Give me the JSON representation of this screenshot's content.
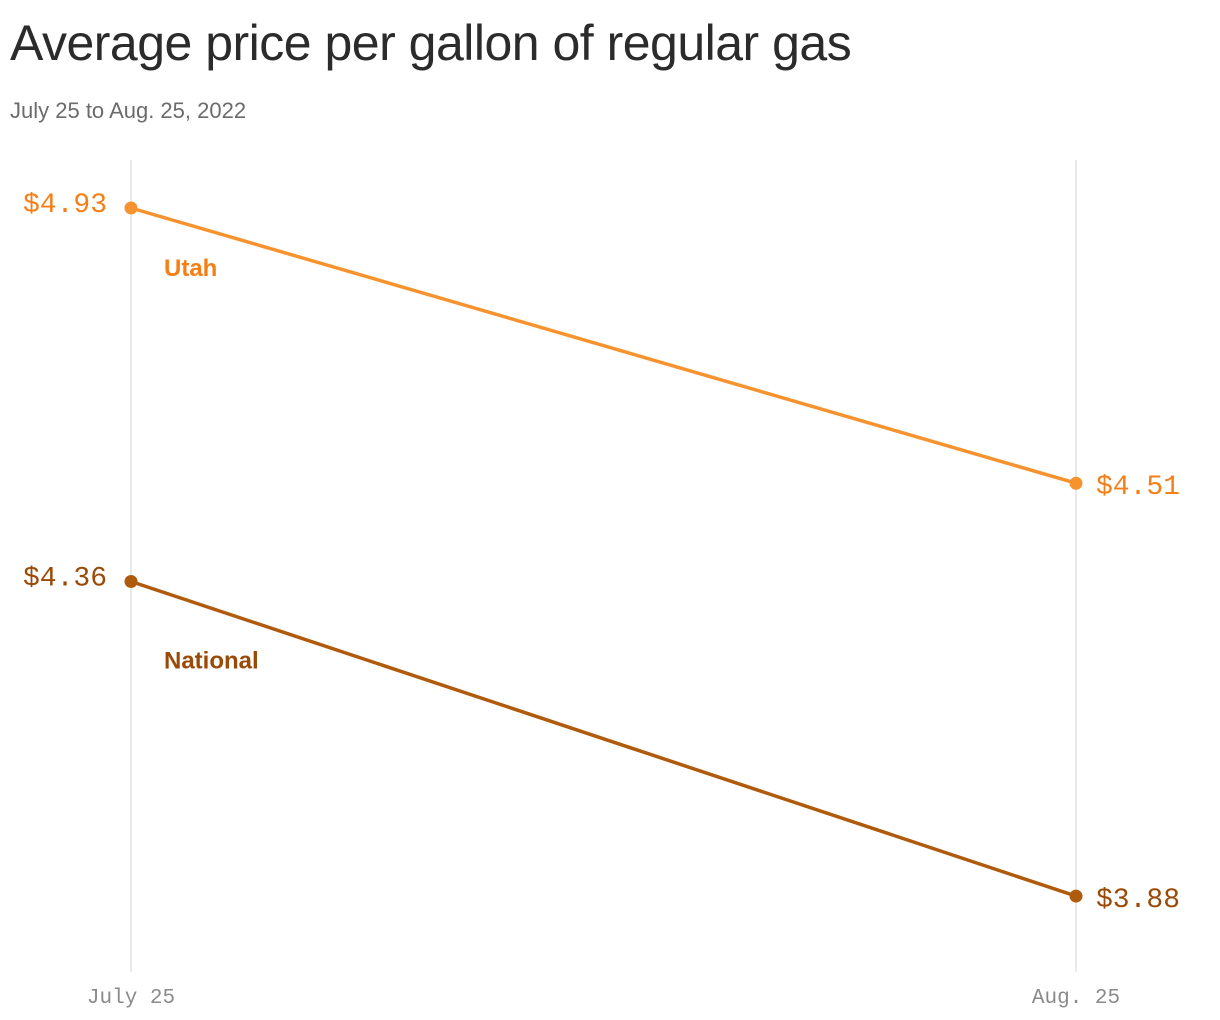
{
  "header": {
    "title": "Average price per gallon of regular gas",
    "subtitle": "July 25 to Aug. 25, 2022"
  },
  "colors": {
    "utah": "#f7932e",
    "utah_text": "#f57f17",
    "national": "#b05a0c",
    "national_text": "#9a4a06",
    "gridline": "#e3e3e3",
    "tick_text": "#8a8a8a"
  },
  "chart_data": {
    "type": "line",
    "title": "Average price per gallon of regular gas",
    "subtitle": "July 25 to Aug. 25, 2022",
    "categories": [
      "July 25",
      "Aug. 25"
    ],
    "series": [
      {
        "name": "Utah",
        "values": [
          4.93,
          4.51
        ],
        "value_labels": [
          "$4.93",
          "$4.51"
        ]
      },
      {
        "name": "National",
        "values": [
          4.36,
          3.88
        ],
        "value_labels": [
          "$4.36",
          "$3.88"
        ]
      }
    ],
    "ylabel": "",
    "xlabel": "",
    "ylim": [
      3.76,
      5.0
    ],
    "grid": "vertical lines at each category",
    "legend": "inline series labels"
  }
}
